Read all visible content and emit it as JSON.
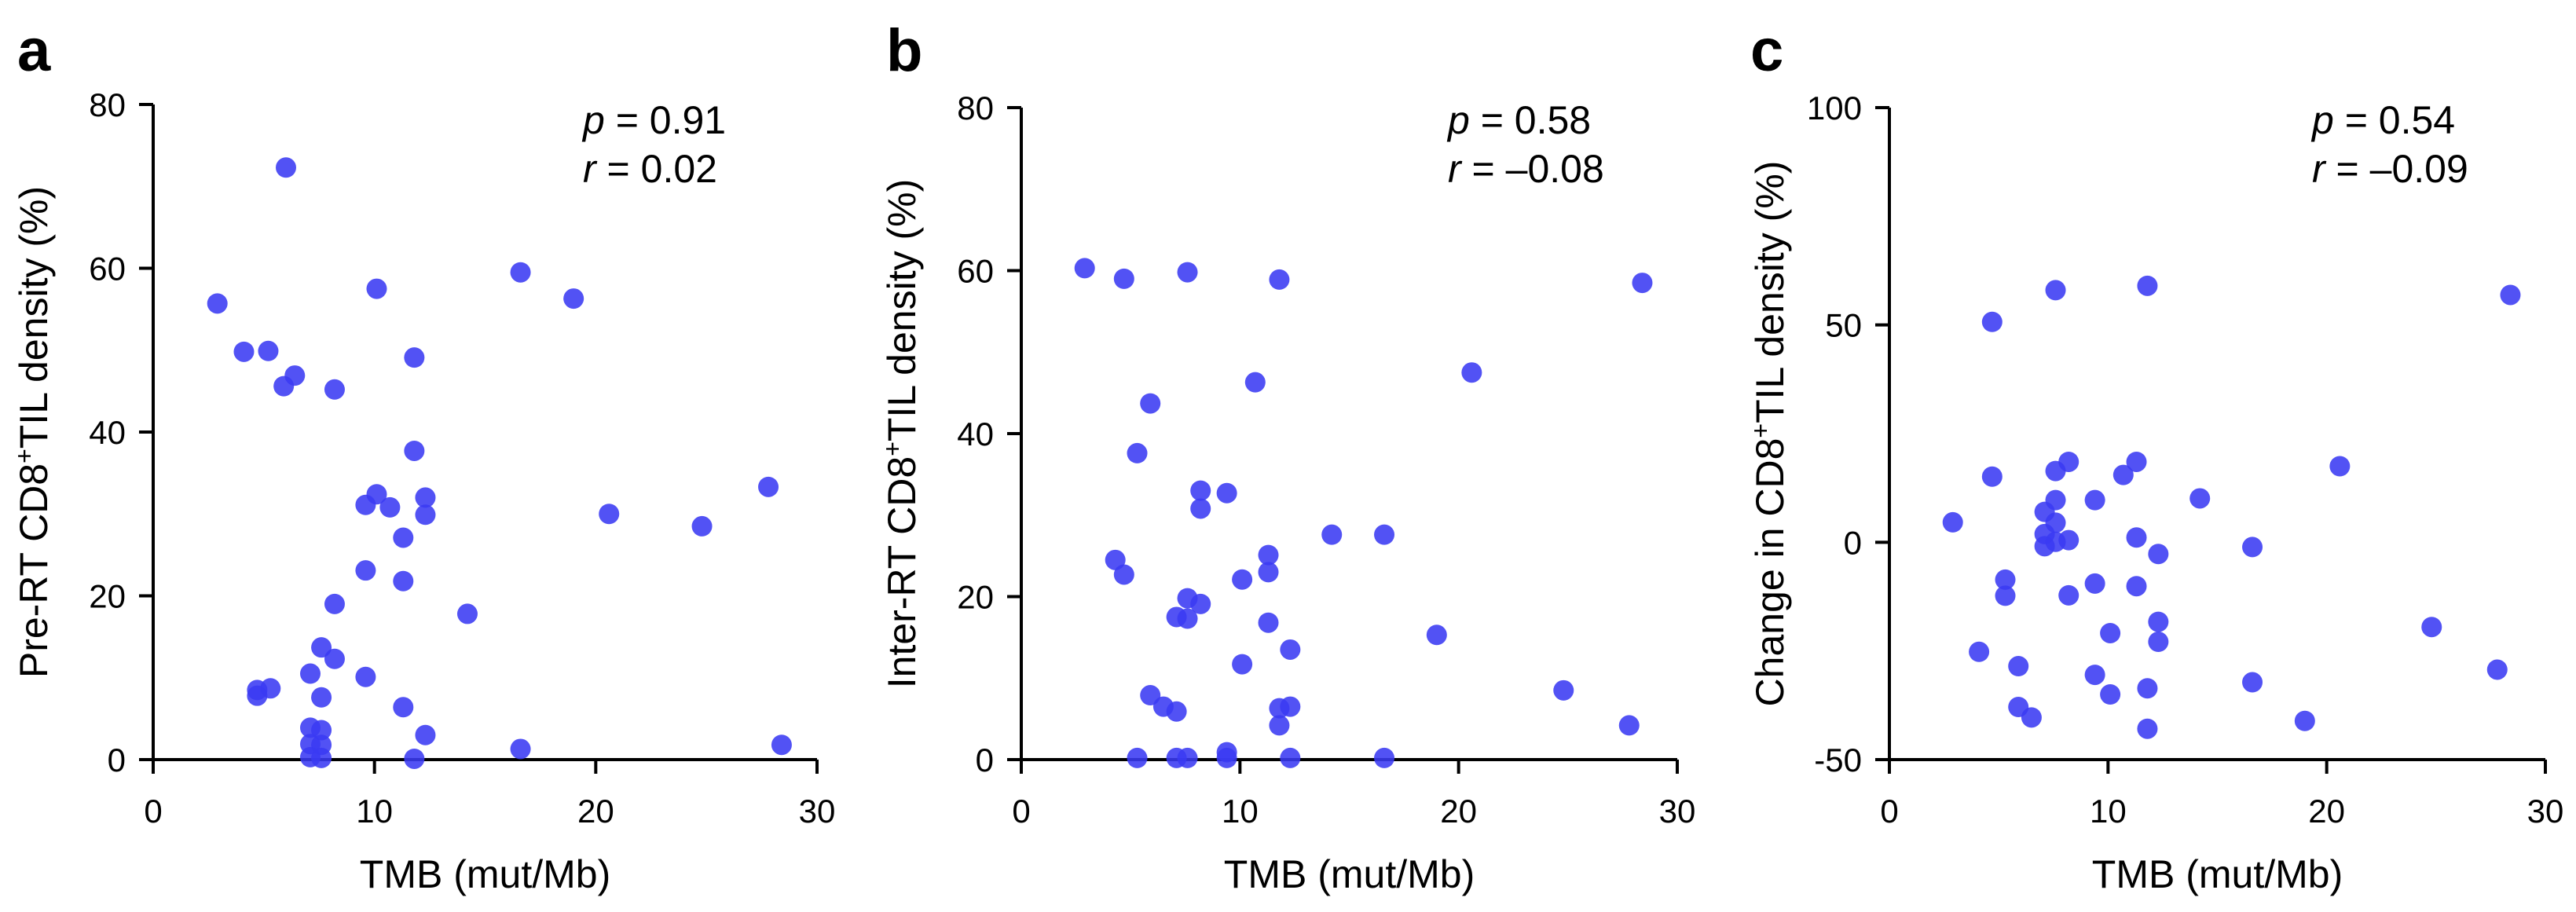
{
  "chart_data": [
    {
      "type": "scatter",
      "panel_label": "a",
      "xlabel": "TMB (mut/Mb)",
      "ylabel_pre": "Pre-RT CD8",
      "ylabel_sup": "+",
      "ylabel_post": "TIL density (%)",
      "xlim": [
        0,
        30
      ],
      "ylim": [
        0,
        80
      ],
      "xticks": [
        "0",
        "10",
        "20",
        "30"
      ],
      "yticks": [
        "0",
        "20",
        "40",
        "60",
        "80"
      ],
      "stats": {
        "p_symbol": "p",
        "p_value": " = 0.91",
        "r_symbol": "r",
        "r_value": " = 0.02"
      },
      "color": "#3a3af2",
      "points": [
        [
          6.0,
          72.3
        ],
        [
          2.9,
          55.7
        ],
        [
          4.1,
          49.8
        ],
        [
          5.2,
          49.9
        ],
        [
          6.4,
          46.9
        ],
        [
          5.9,
          45.6
        ],
        [
          8.2,
          45.2
        ],
        [
          10.1,
          57.5
        ],
        [
          16.6,
          59.5
        ],
        [
          19.0,
          56.3
        ],
        [
          11.8,
          49.1
        ],
        [
          11.8,
          37.7
        ],
        [
          9.6,
          31.1
        ],
        [
          10.1,
          32.4
        ],
        [
          10.7,
          30.8
        ],
        [
          11.3,
          27.1
        ],
        [
          12.3,
          32.0
        ],
        [
          12.3,
          29.9
        ],
        [
          9.6,
          23.1
        ],
        [
          11.3,
          21.8
        ],
        [
          8.2,
          19.0
        ],
        [
          20.6,
          30.0
        ],
        [
          24.8,
          28.5
        ],
        [
          27.8,
          33.3
        ],
        [
          14.2,
          17.8
        ],
        [
          7.6,
          13.7
        ],
        [
          8.2,
          12.3
        ],
        [
          7.1,
          10.5
        ],
        [
          9.6,
          10.1
        ],
        [
          4.7,
          8.5
        ],
        [
          5.3,
          8.7
        ],
        [
          4.7,
          7.8
        ],
        [
          7.6,
          7.6
        ],
        [
          11.3,
          6.4
        ],
        [
          7.1,
          3.9
        ],
        [
          7.6,
          3.6
        ],
        [
          12.3,
          3.0
        ],
        [
          7.1,
          1.9
        ],
        [
          7.6,
          1.8
        ],
        [
          16.6,
          1.3
        ],
        [
          28.4,
          1.8
        ],
        [
          7.1,
          0.3
        ],
        [
          7.6,
          0.2
        ],
        [
          11.8,
          0.1
        ]
      ]
    },
    {
      "type": "scatter",
      "panel_label": "b",
      "xlabel": "TMB (mut/Mb)",
      "ylabel_pre": "Inter-RT CD8",
      "ylabel_sup": "+",
      "ylabel_post": "TIL density (%)",
      "xlim": [
        0,
        30
      ],
      "ylim": [
        0,
        80
      ],
      "xticks": [
        "0",
        "10",
        "20",
        "30"
      ],
      "yticks": [
        "0",
        "20",
        "40",
        "60",
        "80"
      ],
      "stats": {
        "p_symbol": "p",
        "p_value": " = 0.58",
        "r_symbol": "r",
        "r_value": " = –0.08"
      },
      "color": "#3a3af2",
      "points": [
        [
          2.9,
          60.3
        ],
        [
          4.7,
          59.0
        ],
        [
          7.6,
          59.8
        ],
        [
          11.8,
          58.9
        ],
        [
          28.4,
          58.5
        ],
        [
          20.6,
          47.5
        ],
        [
          10.7,
          46.3
        ],
        [
          5.9,
          43.7
        ],
        [
          5.3,
          37.6
        ],
        [
          8.2,
          33.0
        ],
        [
          9.4,
          32.7
        ],
        [
          8.2,
          30.8
        ],
        [
          14.2,
          27.6
        ],
        [
          16.6,
          27.6
        ],
        [
          11.3,
          25.1
        ],
        [
          4.3,
          24.5
        ],
        [
          4.7,
          22.7
        ],
        [
          11.3,
          23.0
        ],
        [
          10.1,
          22.1
        ],
        [
          7.6,
          19.8
        ],
        [
          8.2,
          19.1
        ],
        [
          7.1,
          17.5
        ],
        [
          7.6,
          17.3
        ],
        [
          11.3,
          16.8
        ],
        [
          19.0,
          15.3
        ],
        [
          12.3,
          13.5
        ],
        [
          10.1,
          11.7
        ],
        [
          24.8,
          8.5
        ],
        [
          5.9,
          7.9
        ],
        [
          6.5,
          6.5
        ],
        [
          11.8,
          6.3
        ],
        [
          12.3,
          6.5
        ],
        [
          7.1,
          5.9
        ],
        [
          11.8,
          4.2
        ],
        [
          27.8,
          4.2
        ],
        [
          5.3,
          0.2
        ],
        [
          7.1,
          0.2
        ],
        [
          7.6,
          0.2
        ],
        [
          9.4,
          0.2
        ],
        [
          9.4,
          0.9
        ],
        [
          12.3,
          0.2
        ],
        [
          16.6,
          0.2
        ]
      ]
    },
    {
      "type": "scatter",
      "panel_label": "c",
      "xlabel": "TMB (mut/Mb)",
      "ylabel_pre": "Change in CD8",
      "ylabel_sup": "+",
      "ylabel_post": "TIL density (%)",
      "xlim": [
        0,
        30
      ],
      "ylim": [
        -50,
        100
      ],
      "xticks": [
        "0",
        "10",
        "20",
        "30"
      ],
      "yticks": [
        "-50",
        "0",
        "50",
        "100"
      ],
      "stats": {
        "p_symbol": "p",
        "p_value": " = 0.54",
        "r_symbol": "r",
        "r_value": " = –0.09"
      },
      "color": "#3a3af2",
      "points": [
        [
          4.7,
          50.7
        ],
        [
          7.6,
          58.0
        ],
        [
          11.8,
          59.0
        ],
        [
          28.4,
          56.9
        ],
        [
          20.6,
          17.5
        ],
        [
          4.7,
          15.1
        ],
        [
          7.6,
          16.4
        ],
        [
          8.2,
          18.5
        ],
        [
          11.3,
          18.5
        ],
        [
          10.7,
          15.5
        ],
        [
          14.2,
          10.1
        ],
        [
          7.6,
          9.7
        ],
        [
          9.4,
          9.7
        ],
        [
          7.1,
          7.0
        ],
        [
          2.9,
          4.6
        ],
        [
          7.6,
          4.5
        ],
        [
          7.1,
          1.9
        ],
        [
          8.2,
          0.5
        ],
        [
          7.6,
          0.1
        ],
        [
          7.1,
          -0.9
        ],
        [
          11.3,
          1.1
        ],
        [
          12.3,
          -2.7
        ],
        [
          16.6,
          -1.1
        ],
        [
          5.3,
          -8.6
        ],
        [
          5.3,
          -12.3
        ],
        [
          8.2,
          -12.2
        ],
        [
          9.4,
          -9.5
        ],
        [
          11.3,
          -10.1
        ],
        [
          12.3,
          -18.3
        ],
        [
          10.1,
          -20.9
        ],
        [
          24.8,
          -19.5
        ],
        [
          4.1,
          -25.2
        ],
        [
          12.3,
          -22.9
        ],
        [
          9.4,
          -30.5
        ],
        [
          27.8,
          -29.3
        ],
        [
          5.9,
          -28.5
        ],
        [
          11.8,
          -33.6
        ],
        [
          16.6,
          -32.2
        ],
        [
          10.1,
          -35.0
        ],
        [
          5.9,
          -37.9
        ],
        [
          6.5,
          -40.3
        ],
        [
          11.8,
          -42.9
        ],
        [
          19.0,
          -41.1
        ]
      ]
    }
  ]
}
